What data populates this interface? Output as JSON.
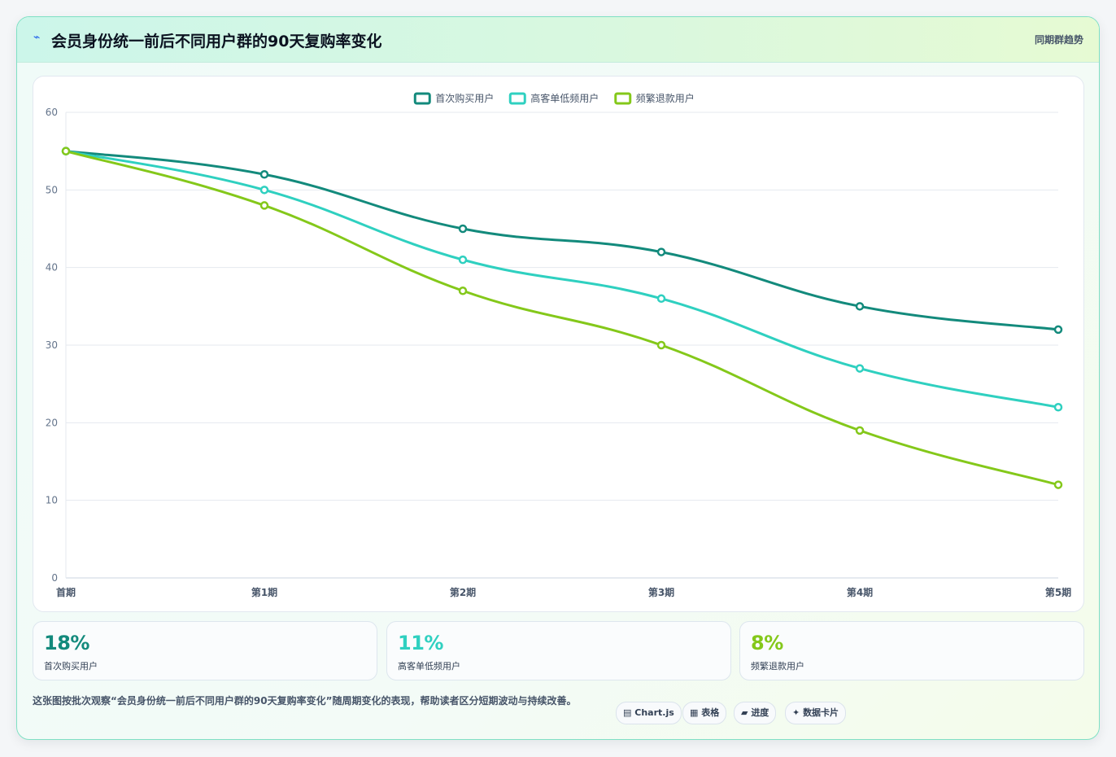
{
  "header": {
    "icon": "lightning-icon",
    "title": "会员身份统一前后不同用户群的90天复购率变化",
    "tag": "同期群趋势"
  },
  "chart_data": {
    "type": "line",
    "categories": [
      "首期",
      "第1期",
      "第2期",
      "第3期",
      "第4期",
      "第5期"
    ],
    "series": [
      {
        "name": "首次购买用户",
        "color": "#138a7c",
        "values": [
          55,
          52,
          45,
          42,
          35,
          32
        ]
      },
      {
        "name": "高客单低频用户",
        "color": "#2fd0c0",
        "values": [
          55,
          50,
          41,
          36,
          27,
          22
        ]
      },
      {
        "name": "频繁退款用户",
        "color": "#84c81a",
        "values": [
          55,
          48,
          37,
          30,
          19,
          12
        ]
      }
    ],
    "ylim": [
      0,
      60
    ],
    "yticks": [
      0,
      10,
      20,
      30,
      40,
      50,
      60
    ],
    "legend": "top-center",
    "grid": true
  },
  "stats": [
    {
      "value": "18%",
      "label": "首次购买用户",
      "color": "#138a7c"
    },
    {
      "value": "11%",
      "label": "高客单低频用户",
      "color": "#2fd0c0"
    },
    {
      "value": "8%",
      "label": "频繁退款用户",
      "color": "#84c81a"
    }
  ],
  "footnote": "这张图按批次观察“会员身份统一前后不同用户群的90天复购率变化”随周期变化的表现，帮助读者区分短期波动与持续改善。",
  "chips": [
    {
      "icon": "chart-icon",
      "glyph": "▤",
      "label": "Chart.js"
    },
    {
      "icon": "table-icon",
      "glyph": "▦",
      "label": "表格"
    },
    {
      "icon": "progress-icon",
      "glyph": "▰",
      "label": "进度"
    },
    {
      "icon": "card-icon",
      "glyph": "✦",
      "label": "数据卡片"
    }
  ]
}
